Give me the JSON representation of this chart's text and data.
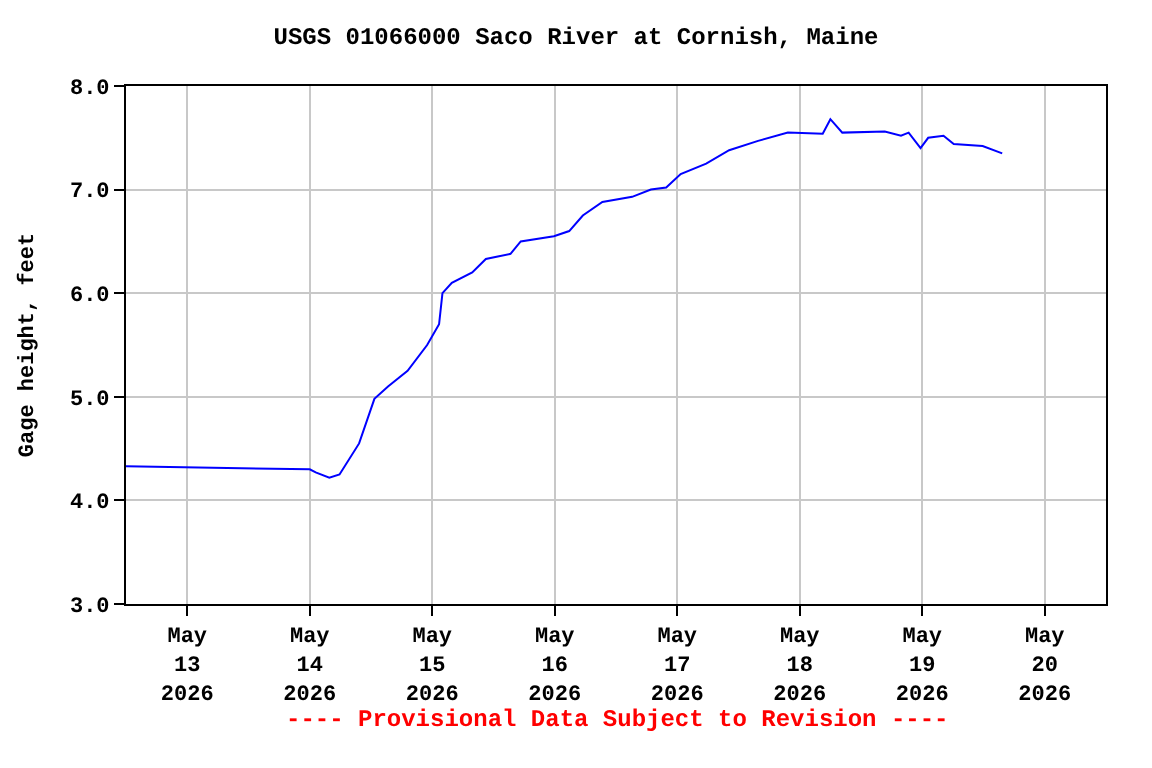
{
  "chart_data": {
    "type": "line",
    "title": "USGS 01066000 Saco River at Cornish, Maine",
    "ylabel": "Gage height, feet",
    "x": [
      "2026-05-12T12:00",
      "2026-05-13T10:40",
      "2026-05-14T00:00",
      "2026-05-14T01:10",
      "2026-05-14T03:50",
      "2026-05-14T05:50",
      "2026-05-14T09:40",
      "2026-05-14T12:40",
      "2026-05-14T15:20",
      "2026-05-14T19:10",
      "2026-05-14T23:00",
      "2026-05-15T01:20",
      "2026-05-15T02:00",
      "2026-05-15T03:50",
      "2026-05-15T07:50",
      "2026-05-15T10:30",
      "2026-05-15T15:20",
      "2026-05-15T17:20",
      "2026-05-15T23:50",
      "2026-05-16T02:50",
      "2026-05-16T05:30",
      "2026-05-16T09:20",
      "2026-05-16T15:10",
      "2026-05-16T18:50",
      "2026-05-16T21:50",
      "2026-05-17T00:40",
      "2026-05-17T05:40",
      "2026-05-17T10:10",
      "2026-05-17T15:50",
      "2026-05-17T21:40",
      "2026-05-18T04:30",
      "2026-05-18T06:00",
      "2026-05-18T08:20",
      "2026-05-18T16:40",
      "2026-05-18T19:50",
      "2026-05-18T21:20",
      "2026-05-18T23:40",
      "2026-05-19T01:10",
      "2026-05-19T04:10",
      "2026-05-19T06:10",
      "2026-05-19T11:50",
      "2026-05-19T15:40"
    ],
    "series": [
      {
        "color": "#0000ff",
        "values": [
          4.33,
          4.31,
          4.3,
          4.27,
          4.22,
          4.25,
          4.55,
          4.98,
          5.1,
          5.25,
          5.5,
          5.7,
          6.0,
          6.1,
          6.2,
          6.33,
          6.38,
          6.5,
          6.55,
          6.6,
          6.75,
          6.88,
          6.93,
          7.0,
          7.02,
          7.15,
          7.25,
          7.38,
          7.47,
          7.55,
          7.54,
          7.68,
          7.55,
          7.56,
          7.52,
          7.55,
          7.4,
          7.5,
          7.52,
          7.44,
          7.42,
          7.35
        ]
      }
    ],
    "xlim": [
      "2026-05-12T12:00",
      "2026-05-20T12:00"
    ],
    "xticks": [
      {
        "value": "2026-05-13",
        "label": "May\n13\n2026"
      },
      {
        "value": "2026-05-14",
        "label": "May\n14\n2026"
      },
      {
        "value": "2026-05-15",
        "label": "May\n15\n2026"
      },
      {
        "value": "2026-05-16",
        "label": "May\n16\n2026"
      },
      {
        "value": "2026-05-17",
        "label": "May\n17\n2026"
      },
      {
        "value": "2026-05-18",
        "label": "May\n18\n2026"
      },
      {
        "value": "2026-05-19",
        "label": "May\n19\n2026"
      },
      {
        "value": "2026-05-20",
        "label": "May\n20\n2026"
      }
    ],
    "ylim": [
      3,
      8
    ],
    "yticks": [
      {
        "value": 3,
        "label": "3.0"
      },
      {
        "value": 4,
        "label": "4.0"
      },
      {
        "value": 5,
        "label": "5.0"
      },
      {
        "value": 6,
        "label": "6.0"
      },
      {
        "value": 7,
        "label": "7.0"
      },
      {
        "value": 8,
        "label": "8.0"
      }
    ],
    "grid": true,
    "legend": false,
    "marker": "none",
    "line_style": "solid",
    "annotations": [
      "---- Provisional Data Subject to Revision ----"
    ]
  }
}
